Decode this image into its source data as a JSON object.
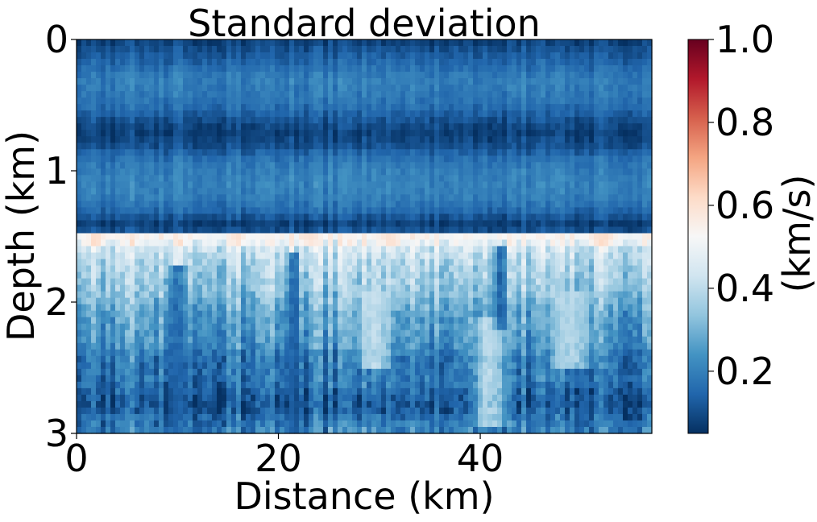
{
  "chart_data": {
    "type": "heatmap",
    "title": "Standard deviation",
    "xlabel": "Distance (km)",
    "ylabel": "Depth (km)",
    "xlim": [
      0,
      57
    ],
    "ylim": [
      3,
      0
    ],
    "x_ticks": [
      "0",
      "20",
      "40"
    ],
    "x_tick_values": [
      0,
      20,
      40
    ],
    "y_ticks": [
      "0",
      "1",
      "2",
      "3"
    ],
    "y_tick_values": [
      0,
      1,
      2,
      3
    ],
    "colorbar": {
      "label": "(km/s)",
      "range": [
        0.05,
        1.0
      ],
      "ticks": [
        "0.2",
        "0.4",
        "0.6",
        "0.8",
        "1.0"
      ],
      "tick_values": [
        0.2,
        0.4,
        0.6,
        0.8,
        1.0
      ],
      "colormap": "RdBu_r",
      "colormap_stops": [
        "#053061",
        "#2166ac",
        "#4393c3",
        "#92c5de",
        "#d1e5f0",
        "#f7f7f7",
        "#fddbc7",
        "#f4a582",
        "#d6604d",
        "#b2182b",
        "#67001f"
      ]
    },
    "depth_profile": {
      "depth_km": [
        0.0,
        0.1,
        0.2,
        0.3,
        0.4,
        0.5,
        0.6,
        0.7,
        0.8,
        0.9,
        1.0,
        1.1,
        1.2,
        1.3,
        1.4,
        1.45,
        1.5,
        1.55,
        1.6,
        1.7,
        1.8,
        1.9,
        2.0,
        2.1,
        2.2,
        2.3,
        2.4,
        2.5,
        2.6,
        2.7,
        2.8,
        2.9,
        3.0
      ],
      "mean_std_kms": [
        0.08,
        0.12,
        0.16,
        0.2,
        0.19,
        0.17,
        0.12,
        0.08,
        0.1,
        0.17,
        0.2,
        0.21,
        0.2,
        0.16,
        0.08,
        0.1,
        0.54,
        0.5,
        0.44,
        0.39,
        0.37,
        0.35,
        0.31,
        0.27,
        0.26,
        0.25,
        0.2,
        0.18,
        0.19,
        0.14,
        0.12,
        0.18,
        0.22
      ]
    },
    "lateral_features": [
      {
        "center_km": 2.0,
        "width_km": 2.0,
        "depth_range_km": [
          1.5,
          1.58
        ],
        "std_kms": 0.62
      },
      {
        "center_km": 16.0,
        "width_km": 2.0,
        "depth_range_km": [
          1.5,
          1.58
        ],
        "std_kms": 0.6
      },
      {
        "center_km": 23.0,
        "width_km": 2.0,
        "depth_range_km": [
          1.5,
          1.58
        ],
        "std_kms": 0.6
      },
      {
        "center_km": 31.0,
        "width_km": 3.0,
        "depth_range_km": [
          1.5,
          1.58
        ],
        "std_kms": 0.6
      },
      {
        "center_km": 52.0,
        "width_km": 3.0,
        "depth_range_km": [
          1.5,
          1.58
        ],
        "std_kms": 0.62
      },
      {
        "center_km": 41.0,
        "width_km": 4.0,
        "depth_range_km": [
          2.1,
          2.95
        ],
        "std_kms": 0.42
      },
      {
        "center_km": 29.5,
        "width_km": 4.0,
        "depth_range_km": [
          1.9,
          2.5
        ],
        "std_kms": 0.42
      },
      {
        "center_km": 49.0,
        "width_km": 5.0,
        "depth_range_km": [
          1.9,
          2.5
        ],
        "std_kms": 0.4
      },
      {
        "center_km": 42.0,
        "width_km": 1.5,
        "depth_range_km": [
          1.55,
          2.2
        ],
        "std_kms": 0.12
      },
      {
        "center_km": 10.0,
        "width_km": 2.0,
        "depth_range_km": [
          1.7,
          3.0
        ],
        "std_kms": 0.12
      },
      {
        "center_km": 21.5,
        "width_km": 1.5,
        "depth_range_km": [
          1.6,
          3.0
        ],
        "std_kms": 0.12
      }
    ]
  }
}
